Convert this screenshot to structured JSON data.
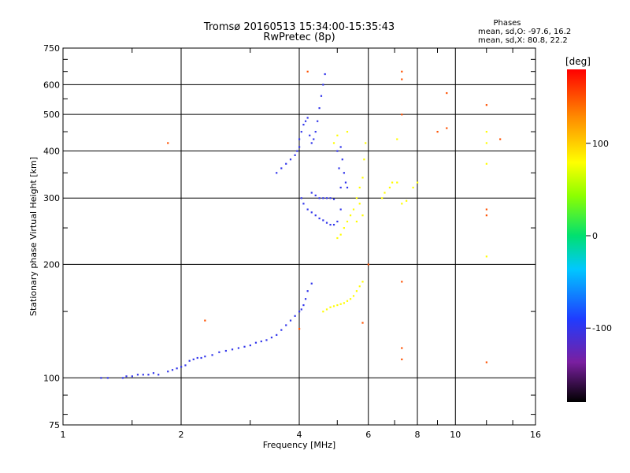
{
  "chart_data": {
    "type": "scatter",
    "title": "Tromsø 20160513 15:34:00-15:35:43",
    "subtitle": "RwPretec (8p)",
    "xlabel": "Frequency [MHz]",
    "ylabel": "Stationary phase Virtual Height [km]",
    "x_scale": "log2",
    "y_scale": "log",
    "xlim": [
      1,
      16
    ],
    "ylim": [
      75,
      750
    ],
    "x_ticks": [
      1,
      2,
      4,
      6,
      8,
      10,
      16
    ],
    "x_tick_labels": [
      "1",
      "2",
      "4",
      "6",
      "8",
      "10",
      "16"
    ],
    "y_ticks": [
      75,
      100,
      200,
      300,
      400,
      500,
      600,
      750
    ],
    "y_tick_labels": [
      "75",
      "100",
      "200",
      "300",
      "400",
      "500",
      "600",
      "750"
    ],
    "grid": true,
    "phase_legend": {
      "heading": "Phases",
      "o_stats": "mean, sd,O: -97.6, 16.2",
      "x_stats": "mean, sd,X: 80.8, 22.2"
    },
    "colorbar": {
      "label": "[deg]",
      "range": [
        -180,
        180
      ],
      "ticks": [
        -100,
        0,
        100
      ],
      "tick_labels": [
        "-100",
        "0",
        "100"
      ]
    },
    "series": [
      {
        "name": "O trace (blue)",
        "phase": -100,
        "points": [
          [
            1.25,
            100
          ],
          [
            1.3,
            100
          ],
          [
            1.42,
            100
          ],
          [
            1.45,
            101
          ],
          [
            1.5,
            101
          ],
          [
            1.55,
            102
          ],
          [
            1.6,
            102
          ],
          [
            1.65,
            102
          ],
          [
            1.7,
            103
          ],
          [
            1.75,
            102
          ],
          [
            1.85,
            104
          ],
          [
            1.9,
            105
          ],
          [
            1.95,
            106
          ],
          [
            2.0,
            107
          ],
          [
            2.05,
            108
          ],
          [
            2.1,
            111
          ],
          [
            2.15,
            112
          ],
          [
            2.2,
            113
          ],
          [
            2.25,
            113
          ],
          [
            2.3,
            114
          ],
          [
            2.4,
            115
          ],
          [
            2.5,
            117
          ],
          [
            2.6,
            118
          ],
          [
            2.7,
            119
          ],
          [
            2.8,
            120
          ],
          [
            2.9,
            121
          ],
          [
            3.0,
            122
          ],
          [
            3.1,
            124
          ],
          [
            3.2,
            125
          ],
          [
            3.3,
            126
          ],
          [
            3.4,
            128
          ],
          [
            3.5,
            130
          ],
          [
            3.6,
            134
          ],
          [
            3.7,
            138
          ],
          [
            3.8,
            142
          ],
          [
            3.9,
            146
          ],
          [
            4.0,
            150
          ],
          [
            4.05,
            152
          ],
          [
            4.1,
            156
          ],
          [
            4.15,
            162
          ],
          [
            4.2,
            170
          ],
          [
            4.3,
            178
          ],
          [
            3.5,
            350
          ],
          [
            3.6,
            360
          ],
          [
            3.7,
            370
          ],
          [
            3.8,
            380
          ],
          [
            3.9,
            390
          ],
          [
            3.95,
            400
          ],
          [
            4.0,
            410
          ],
          [
            4.0,
            430
          ],
          [
            4.05,
            450
          ],
          [
            4.1,
            470
          ],
          [
            4.15,
            480
          ],
          [
            4.2,
            490
          ],
          [
            4.25,
            440
          ],
          [
            4.3,
            420
          ],
          [
            4.35,
            430
          ],
          [
            4.4,
            450
          ],
          [
            4.45,
            480
          ],
          [
            4.5,
            520
          ],
          [
            4.55,
            560
          ],
          [
            4.6,
            600
          ],
          [
            4.65,
            640
          ],
          [
            4.05,
            300
          ],
          [
            4.1,
            290
          ],
          [
            4.2,
            280
          ],
          [
            4.3,
            275
          ],
          [
            4.4,
            270
          ],
          [
            4.5,
            265
          ],
          [
            4.6,
            262
          ],
          [
            4.7,
            258
          ],
          [
            4.8,
            255
          ],
          [
            4.9,
            255
          ],
          [
            5.0,
            260
          ],
          [
            5.1,
            280
          ],
          [
            5.1,
            320
          ],
          [
            5.05,
            360
          ],
          [
            5.0,
            400
          ],
          [
            5.1,
            410
          ],
          [
            5.15,
            380
          ],
          [
            5.2,
            350
          ],
          [
            5.25,
            330
          ],
          [
            5.3,
            320
          ],
          [
            4.3,
            310
          ],
          [
            4.4,
            305
          ],
          [
            4.5,
            300
          ],
          [
            4.6,
            300
          ],
          [
            4.7,
            300
          ],
          [
            4.8,
            300
          ],
          [
            4.9,
            298
          ]
        ]
      },
      {
        "name": "X trace (yellow-green)",
        "phase": 80,
        "points": [
          [
            5.0,
            235
          ],
          [
            5.1,
            240
          ],
          [
            5.2,
            250
          ],
          [
            5.3,
            260
          ],
          [
            5.4,
            270
          ],
          [
            5.5,
            280
          ],
          [
            5.6,
            300
          ],
          [
            5.7,
            320
          ],
          [
            5.8,
            340
          ],
          [
            5.85,
            380
          ],
          [
            5.9,
            420
          ],
          [
            5.8,
            270
          ],
          [
            5.7,
            290
          ],
          [
            5.6,
            260
          ],
          [
            4.6,
            150
          ],
          [
            4.7,
            152
          ],
          [
            4.8,
            154
          ],
          [
            4.9,
            155
          ],
          [
            5.0,
            156
          ],
          [
            5.1,
            157
          ],
          [
            5.2,
            158
          ],
          [
            5.3,
            160
          ],
          [
            5.4,
            162
          ],
          [
            5.5,
            165
          ],
          [
            5.6,
            170
          ],
          [
            5.7,
            175
          ],
          [
            5.8,
            180
          ],
          [
            6.5,
            300
          ],
          [
            6.6,
            310
          ],
          [
            6.8,
            320
          ],
          [
            6.9,
            330
          ],
          [
            7.1,
            330
          ],
          [
            7.3,
            290
          ],
          [
            7.5,
            295
          ],
          [
            7.8,
            320
          ],
          [
            8.0,
            330
          ],
          [
            7.1,
            430
          ],
          [
            12.0,
            370
          ],
          [
            12.0,
            420
          ],
          [
            12.0,
            450
          ],
          [
            12.0,
            210
          ],
          [
            4.9,
            420
          ],
          [
            5.0,
            440
          ],
          [
            5.3,
            450
          ]
        ]
      },
      {
        "name": "Scattered echoes",
        "phase": 150,
        "points": [
          [
            1.85,
            420
          ],
          [
            7.3,
            650
          ],
          [
            7.3,
            620
          ],
          [
            7.3,
            500
          ],
          [
            7.3,
            180
          ],
          [
            7.3,
            120
          ],
          [
            7.3,
            112
          ],
          [
            9.0,
            450
          ],
          [
            9.5,
            460
          ],
          [
            9.5,
            570
          ],
          [
            12.0,
            530
          ],
          [
            12.0,
            280
          ],
          [
            12.0,
            270
          ],
          [
            12.0,
            110
          ],
          [
            13.0,
            430
          ],
          [
            2.3,
            142
          ],
          [
            4.0,
            135
          ],
          [
            4.2,
            650
          ],
          [
            6.0,
            200
          ],
          [
            5.8,
            140
          ]
        ]
      }
    ]
  }
}
